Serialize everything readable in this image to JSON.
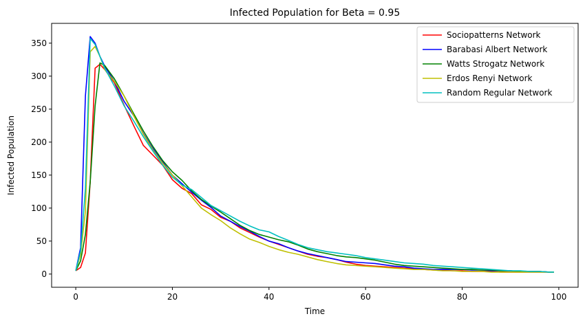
{
  "chart_data": {
    "type": "line",
    "title": "Infected Population for Beta = 0.95",
    "xlabel": "Time",
    "ylabel": "Infected Population",
    "xlim": [
      -5,
      104
    ],
    "ylim": [
      -20,
      380
    ],
    "xticks": [
      0,
      20,
      40,
      60,
      80,
      100
    ],
    "yticks": [
      0,
      50,
      100,
      150,
      200,
      250,
      300,
      350
    ],
    "grid": false,
    "legend_position": "top-right",
    "x": [
      0,
      1,
      2,
      3,
      4,
      5,
      6,
      8,
      10,
      12,
      14,
      16,
      18,
      20,
      22,
      24,
      26,
      28,
      30,
      32,
      34,
      36,
      38,
      40,
      42,
      44,
      46,
      48,
      50,
      52,
      54,
      56,
      58,
      60,
      62,
      64,
      66,
      68,
      70,
      72,
      74,
      76,
      78,
      80,
      82,
      84,
      86,
      88,
      90,
      92,
      94,
      96,
      98,
      99
    ],
    "series": [
      {
        "name": "Sociopatterns Network",
        "color": "#ff0000",
        "values": [
          5,
          10,
          32,
          140,
          312,
          318,
          310,
          290,
          256,
          225,
          195,
          180,
          165,
          143,
          130,
          122,
          105,
          98,
          86,
          80,
          70,
          63,
          56,
          50,
          45,
          40,
          35,
          30,
          27,
          25,
          22,
          18,
          15,
          13,
          12,
          11,
          10,
          9,
          8,
          7,
          6,
          6,
          5,
          5,
          4,
          4,
          4,
          3,
          3,
          3,
          3,
          3,
          3,
          3
        ]
      },
      {
        "name": "Barabasi Albert Network",
        "color": "#0000ff",
        "values": [
          5,
          40,
          270,
          360,
          350,
          330,
          315,
          292,
          262,
          240,
          213,
          190,
          170,
          150,
          137,
          124,
          112,
          101,
          88,
          80,
          72,
          65,
          57,
          50,
          46,
          40,
          35,
          31,
          28,
          25,
          22,
          19,
          18,
          17,
          16,
          14,
          12,
          11,
          9,
          8,
          7,
          7,
          7,
          7,
          6,
          6,
          5,
          5,
          5,
          4,
          4,
          4,
          3,
          3
        ]
      },
      {
        "name": "Watts Strogatz Network",
        "color": "#008000",
        "values": [
          5,
          20,
          60,
          140,
          255,
          320,
          316,
          296,
          270,
          243,
          217,
          193,
          172,
          155,
          142,
          126,
          113,
          103,
          94,
          84,
          74,
          66,
          60,
          56,
          52,
          49,
          44,
          38,
          34,
          31,
          28,
          26,
          25,
          23,
          21,
          18,
          15,
          13,
          12,
          11,
          10,
          9,
          8,
          7,
          7,
          6,
          6,
          5,
          5,
          4,
          4,
          4,
          3,
          3
        ]
      },
      {
        "name": "Erdos Renyi Network",
        "color": "#bfbf00",
        "values": [
          5,
          30,
          95,
          337,
          345,
          330,
          310,
          292,
          270,
          240,
          212,
          188,
          168,
          150,
          134,
          117,
          100,
          90,
          81,
          70,
          61,
          53,
          48,
          42,
          37,
          33,
          30,
          26,
          22,
          19,
          16,
          14,
          13,
          12,
          11,
          10,
          9,
          8,
          7,
          7,
          6,
          5,
          5,
          4,
          4,
          4,
          3,
          3,
          3,
          3,
          3,
          3,
          3,
          3
        ]
      },
      {
        "name": "Random Regular Network",
        "color": "#00bfbf",
        "values": [
          5,
          35,
          130,
          357,
          348,
          330,
          312,
          285,
          255,
          232,
          208,
          186,
          165,
          147,
          135,
          128,
          116,
          104,
          96,
          88,
          80,
          73,
          67,
          64,
          57,
          51,
          45,
          40,
          37,
          34,
          32,
          30,
          28,
          25,
          23,
          21,
          19,
          17,
          16,
          15,
          13,
          12,
          11,
          10,
          9,
          8,
          7,
          6,
          5,
          5,
          4,
          4,
          3,
          3
        ]
      }
    ]
  }
}
